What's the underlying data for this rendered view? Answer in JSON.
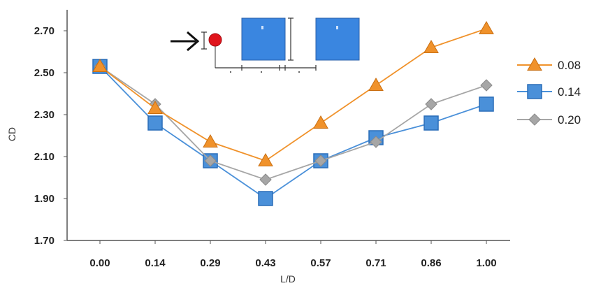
{
  "chart_data": {
    "type": "line",
    "xlabel": "L/D",
    "ylabel": "CD",
    "categories": [
      "0.00",
      "0.14",
      "0.29",
      "0.43",
      "0.57",
      "0.71",
      "0.86",
      "1.00"
    ],
    "yticks": [
      "1.70",
      "1.90",
      "2.10",
      "2.30",
      "2.50",
      "2.70"
    ],
    "ylim": [
      1.7,
      2.8
    ],
    "grid": false,
    "legend_position": "right",
    "series": [
      {
        "name": "0.08",
        "marker": "triangle",
        "color": "#f0922b",
        "values": [
          2.53,
          2.33,
          2.17,
          2.08,
          2.26,
          2.44,
          2.62,
          2.71
        ]
      },
      {
        "name": "0.14",
        "marker": "square",
        "color": "#4a90d9",
        "values": [
          2.53,
          2.26,
          2.08,
          1.9,
          2.08,
          2.19,
          2.26,
          2.35
        ]
      },
      {
        "name": "0.20",
        "marker": "diamond",
        "color": "#a6a6a6",
        "values": [
          2.53,
          2.35,
          2.08,
          1.99,
          2.08,
          2.17,
          2.35,
          2.44
        ]
      }
    ]
  },
  "inset_schematic": {
    "description_colors": {
      "cylinder": "#e0141c",
      "block": "#3a86e0",
      "arrow": "#111111"
    }
  }
}
